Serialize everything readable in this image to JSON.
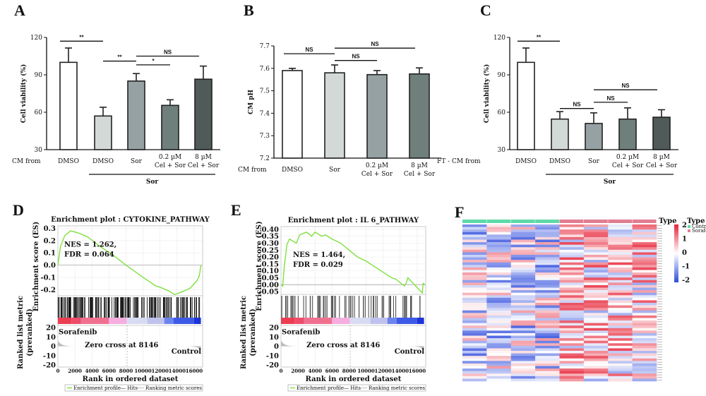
{
  "panel_labels": [
    "A",
    "B",
    "C",
    "D",
    "E",
    "F"
  ],
  "chart_data": [
    {
      "type": "bar",
      "panel": "A",
      "ylabel": "Cell viability (%)",
      "row_label": "CM from",
      "ylim": [
        30,
        120
      ],
      "yticks": [
        "30",
        "60",
        "90",
        "120"
      ],
      "categories": [
        "DMSO",
        "DMSO",
        "Sor",
        "0.2 µM|Cel + Sor",
        "8 µM|Cel + Sor"
      ],
      "values": [
        100,
        57,
        85,
        65.5,
        86.5
      ],
      "errors": [
        11.5,
        7,
        6,
        4.5,
        10.5
      ],
      "colors": [
        "#ffffff",
        "#d2d9d6",
        "#96a1a4",
        "#6f7f7b",
        "#4f5a59"
      ],
      "group_label": "Sor",
      "group_range": [
        1,
        4
      ],
      "significance": [
        {
          "from": 0,
          "to": 1,
          "label": "**",
          "y": 117
        },
        {
          "from": 1,
          "to": 2,
          "label": "**",
          "y": 101
        },
        {
          "from": 2,
          "to": 3,
          "label": "*",
          "y": 98
        },
        {
          "from": 2,
          "to": 4,
          "label": "NS",
          "y": 105
        }
      ]
    },
    {
      "type": "bar",
      "panel": "B",
      "ylabel": "CM pH",
      "row_label": "CM from",
      "ylim": [
        7.2,
        7.7
      ],
      "yticks": [
        "7.2",
        "7.3",
        "7.4",
        "7.5",
        "7.6",
        "7.7"
      ],
      "categories": [
        "DMSO",
        "Sor",
        "0.2 µM|Cel + Sor",
        "8 µM|Cel + Sor"
      ],
      "values": [
        7.59,
        7.58,
        7.572,
        7.575
      ],
      "errors": [
        0.01,
        0.035,
        0.018,
        0.027
      ],
      "colors": [
        "#ffffff",
        "#d2d9d6",
        "#96a1a4",
        "#6f7f7b"
      ],
      "significance": [
        {
          "from": 0,
          "to": 1,
          "label": "NS",
          "y": 7.665
        },
        {
          "from": 1,
          "to": 2,
          "label": "NS",
          "y": 7.635
        },
        {
          "from": 1,
          "to": 3,
          "label": "NS",
          "y": 7.69
        }
      ]
    },
    {
      "type": "bar",
      "panel": "C",
      "ylabel": "Cell viability (%)",
      "row_label": "FT - CM from",
      "ylim": [
        30,
        120
      ],
      "yticks": [
        "30",
        "60",
        "90",
        "120"
      ],
      "categories": [
        "DMSO",
        "DMSO",
        "Sor",
        "0.2 µM|Cel + Sor",
        "8 µM|Cel + Sor"
      ],
      "values": [
        100,
        54.5,
        51,
        54.5,
        56
      ],
      "errors": [
        11.5,
        6,
        8.5,
        9,
        6
      ],
      "colors": [
        "#ffffff",
        "#d2d9d6",
        "#96a1a4",
        "#6f7f7b",
        "#4f5a59"
      ],
      "group_label": "Sor",
      "group_range": [
        1,
        4
      ],
      "significance": [
        {
          "from": 0,
          "to": 1,
          "label": "**",
          "y": 117
        },
        {
          "from": 1,
          "to": 2,
          "label": "NS",
          "y": 63
        },
        {
          "from": 2,
          "to": 3,
          "label": "NS",
          "y": 68
        },
        {
          "from": 2,
          "to": 4,
          "label": "NS",
          "y": 78
        }
      ]
    },
    {
      "type": "line",
      "panel": "D",
      "title": "Enrichment plot : CYTOKINE_PATHWAY",
      "ylabel": "Enrichment score (ES)",
      "ylabel2": "Ranked list metric|(preranked)",
      "xlabel": "Rank in ordered dataset",
      "ylim": [
        -0.25,
        0.32
      ],
      "yticks": [
        "0.3",
        "0.2",
        "0.1",
        "0.0",
        "-0.1",
        "-0.2"
      ],
      "xlim": [
        0,
        17000
      ],
      "xticks": [
        "0",
        "2000",
        "4000",
        "6000",
        "8000",
        "10000",
        "12000",
        "14000",
        "16000"
      ],
      "metric_ticks": [
        "20",
        "10",
        "0",
        "-10",
        "-20"
      ],
      "nes": "NES = 1.262,",
      "fdr": "FDR = 0.064",
      "pos_label": "Sorafenib",
      "neg_label": "Control",
      "zero_cross": "Zero cross at 8146",
      "legend": [
        "Enrichment profile— Hits",
        "Ranking metric scores"
      ],
      "hit_density": "dense",
      "es": [
        [
          0,
          0
        ],
        [
          300,
          0.15
        ],
        [
          800,
          0.24
        ],
        [
          1500,
          0.28
        ],
        [
          2500,
          0.26
        ],
        [
          3500,
          0.23
        ],
        [
          5000,
          0.15
        ],
        [
          6500,
          0.08
        ],
        [
          8000,
          0.0
        ],
        [
          10000,
          -0.1
        ],
        [
          11500,
          -0.17
        ],
        [
          12000,
          -0.18
        ],
        [
          13000,
          -0.21
        ],
        [
          13700,
          -0.24
        ],
        [
          14500,
          -0.22
        ],
        [
          15500,
          -0.19
        ],
        [
          16300,
          -0.13
        ],
        [
          16600,
          -0.09
        ],
        [
          16800,
          0.0
        ]
      ]
    },
    {
      "type": "line",
      "panel": "E",
      "title": "Enrichment plot : IL 6_PATHWAY",
      "ylabel": "Enrichment score (ES)",
      "ylabel2": "Ranked list metric|(preranked)",
      "xlabel": "Rank in ordered dataset",
      "ylim": [
        -0.07,
        0.42
      ],
      "yticks": [
        "0.40",
        "0.35",
        "0.30",
        "0.25",
        "0.20",
        "0.15",
        "0.10",
        "0.05",
        "0.00",
        "-0.05"
      ],
      "xlim": [
        0,
        17000
      ],
      "xticks": [
        "0",
        "2000",
        "4000",
        "6000",
        "8000",
        "10000",
        "12000",
        "14000",
        "16000"
      ],
      "metric_ticks": [
        "20",
        "10",
        "0",
        "-10",
        "-20"
      ],
      "nes": "NES = 1.464,",
      "fdr": "FDR = 0.029",
      "pos_label": "Sorafenib",
      "neg_label": "Control",
      "zero_cross": "Zero cross at 8146",
      "legend": [
        "Enrichment profile— Hits",
        "Ranking metric scores"
      ],
      "hit_density": "sparse",
      "es": [
        [
          0,
          0
        ],
        [
          200,
          -0.01
        ],
        [
          400,
          0.14
        ],
        [
          700,
          0.29
        ],
        [
          1000,
          0.33
        ],
        [
          1800,
          0.3
        ],
        [
          2200,
          0.36
        ],
        [
          3000,
          0.38
        ],
        [
          3600,
          0.35
        ],
        [
          4000,
          0.38
        ],
        [
          4800,
          0.35
        ],
        [
          5200,
          0.36
        ],
        [
          6000,
          0.33
        ],
        [
          7000,
          0.3
        ],
        [
          8000,
          0.25
        ],
        [
          9000,
          0.2
        ],
        [
          10000,
          0.17
        ],
        [
          11000,
          0.13
        ],
        [
          12000,
          0.09
        ],
        [
          13000,
          0.05
        ],
        [
          13500,
          0.04
        ],
        [
          14500,
          -0.01
        ],
        [
          14700,
          0.01
        ],
        [
          14900,
          0.05
        ],
        [
          16600,
          -0.06
        ],
        [
          16700,
          0.01
        ],
        [
          16900,
          0.0
        ]
      ]
    },
    {
      "type": "heatmap",
      "panel": "F",
      "legend_title": "Type",
      "colorbar_title": "Type",
      "colorbar_ticks": [
        "2",
        "1",
        "0",
        "-1",
        "-2"
      ],
      "groups": [
        "Control",
        "Sorafenib"
      ],
      "group_colors": [
        "#5fd9a8",
        "#e27d93"
      ],
      "columns_per_group": 4,
      "rows": 62,
      "vrange": [
        -2,
        2
      ]
    }
  ],
  "colors": {
    "es_line": "#80e040",
    "pos": "#e8344a",
    "neg": "#2244dd"
  }
}
